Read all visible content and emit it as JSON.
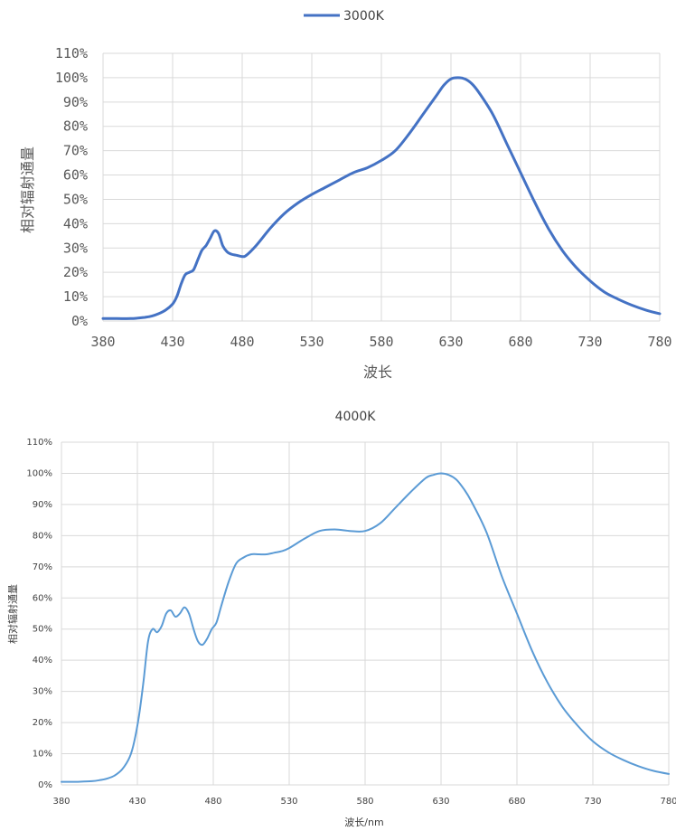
{
  "chart_data": [
    {
      "type": "line",
      "title": "",
      "legend": {
        "position": "top",
        "entries": [
          "3000K"
        ]
      },
      "xlabel": "波长",
      "ylabel": "相对辐射通量",
      "xlim": [
        380,
        780
      ],
      "ylim": [
        0,
        110
      ],
      "x_ticks": [
        "380",
        "430",
        "480",
        "530",
        "580",
        "630",
        "680",
        "730",
        "780"
      ],
      "y_ticks": [
        "0%",
        "10%",
        "20%",
        "30%",
        "40%",
        "50%",
        "60%",
        "70%",
        "80%",
        "90%",
        "100%",
        "110%"
      ],
      "grid": true,
      "colors": {
        "series": "#4472c4"
      },
      "series": [
        {
          "name": "3000K",
          "x": [
            380,
            390,
            400,
            405,
            410,
            415,
            420,
            425,
            430,
            433,
            436,
            439,
            442,
            445,
            448,
            451,
            454,
            457,
            460,
            463,
            466,
            469,
            472,
            476,
            480,
            483,
            490,
            500,
            510,
            520,
            530,
            540,
            550,
            560,
            570,
            580,
            590,
            600,
            610,
            620,
            625,
            630,
            635,
            640,
            645,
            650,
            660,
            670,
            680,
            690,
            700,
            710,
            720,
            730,
            740,
            750,
            760,
            770,
            780
          ],
          "y": [
            1,
            1,
            1,
            1.2,
            1.5,
            2,
            3,
            4.5,
            7,
            10,
            15,
            19,
            20,
            21,
            25,
            29,
            31,
            34,
            37,
            36,
            31,
            28.5,
            27.5,
            27,
            26.5,
            27,
            31,
            38,
            44,
            48.5,
            52,
            55,
            58,
            61,
            63,
            66,
            70,
            77,
            85,
            93,
            97,
            99.5,
            100,
            99.5,
            97.5,
            94,
            85,
            73,
            61,
            49,
            38,
            29,
            22,
            16.5,
            12,
            9,
            6.5,
            4.5,
            3
          ]
        }
      ]
    },
    {
      "type": "line",
      "title": "4000K",
      "xlabel": "波长/nm",
      "ylabel": "相对辐射通量",
      "xlim": [
        380,
        780
      ],
      "ylim": [
        0,
        110
      ],
      "x_ticks": [
        "380",
        "430",
        "480",
        "530",
        "580",
        "630",
        "680",
        "730",
        "780"
      ],
      "y_ticks": [
        "0%",
        "10%",
        "20%",
        "30%",
        "40%",
        "50%",
        "60%",
        "70%",
        "80%",
        "90%",
        "100%",
        "110%"
      ],
      "grid": true,
      "colors": {
        "series": "#5b9bd5"
      },
      "series": [
        {
          "name": "",
          "x": [
            380,
            390,
            400,
            405,
            410,
            415,
            420,
            425,
            428,
            431,
            434,
            437,
            440,
            443,
            446,
            449,
            452,
            455,
            458,
            461,
            464,
            467,
            470,
            473,
            476,
            479,
            482,
            485,
            490,
            495,
            500,
            505,
            510,
            515,
            520,
            525,
            530,
            540,
            550,
            560,
            570,
            580,
            590,
            600,
            610,
            620,
            625,
            630,
            635,
            640,
            645,
            650,
            660,
            670,
            680,
            690,
            700,
            710,
            720,
            730,
            740,
            750,
            760,
            770,
            780
          ],
          "y": [
            1,
            1,
            1.2,
            1.5,
            2,
            3,
            5,
            9,
            14,
            22,
            33,
            46,
            50,
            49,
            51,
            55,
            56,
            54,
            55,
            57,
            55,
            50,
            46,
            45,
            47,
            50,
            52,
            57,
            65,
            71,
            73,
            74,
            74,
            74,
            74.5,
            75,
            76,
            79,
            81.5,
            82,
            81.5,
            81.5,
            84,
            89,
            94,
            98.5,
            99.5,
            100,
            99.5,
            98,
            95,
            91,
            81,
            67,
            55,
            43,
            33,
            25,
            19,
            14,
            10.5,
            8,
            6,
            4.5,
            3.5
          ]
        }
      ]
    }
  ]
}
